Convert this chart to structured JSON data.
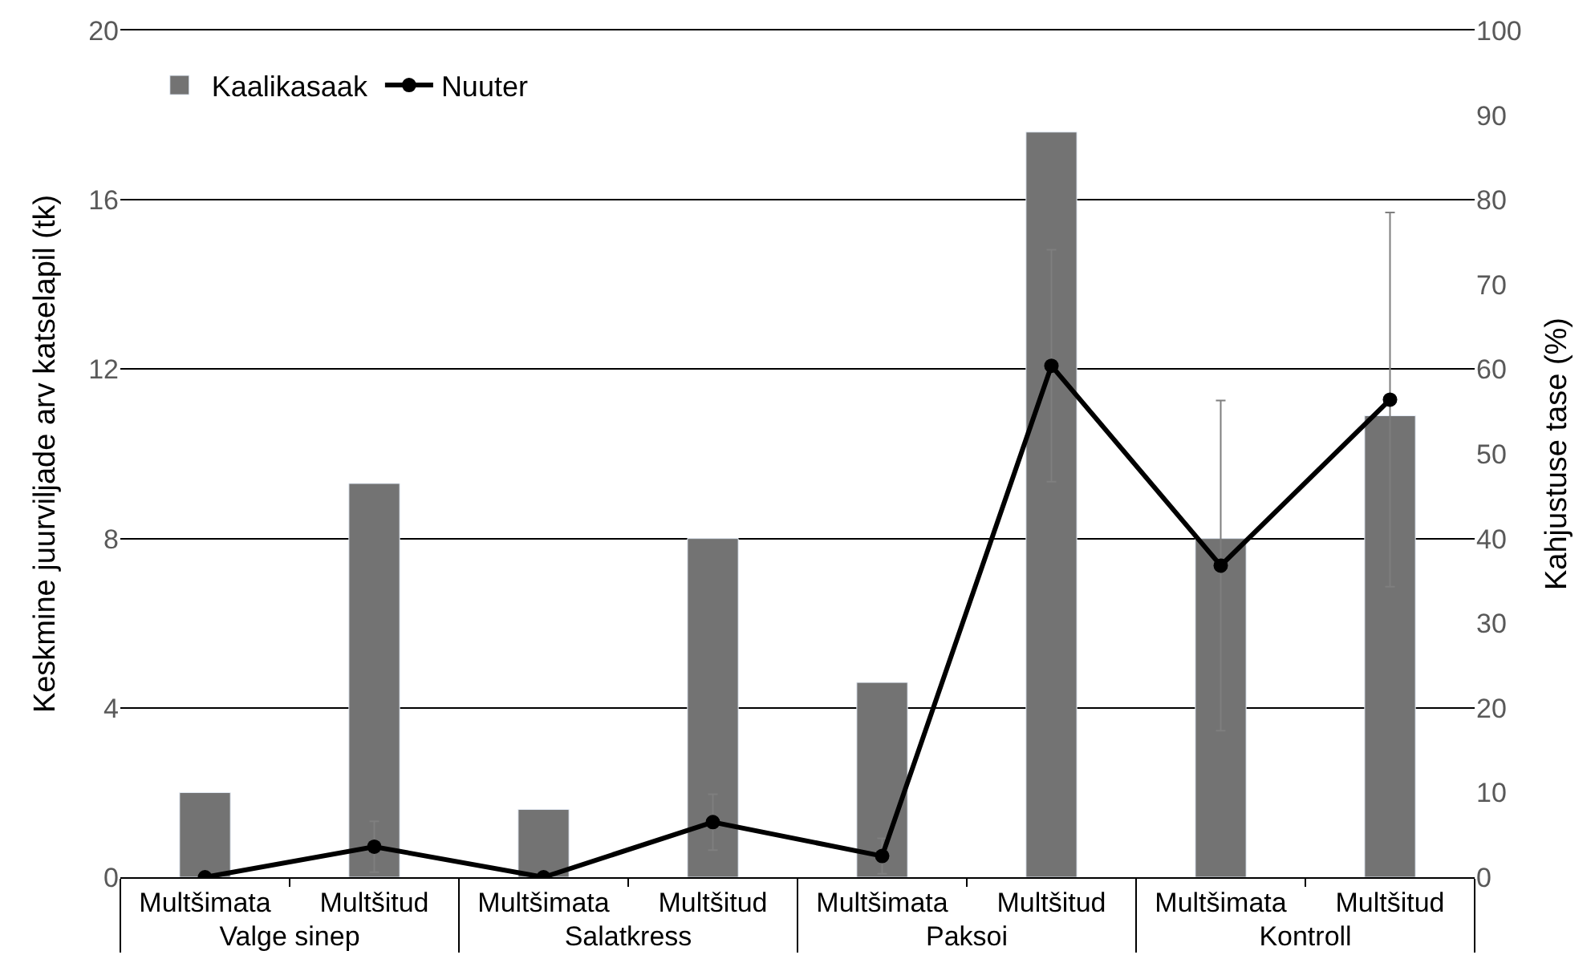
{
  "chart_data": {
    "type": "bar",
    "categories": [
      [
        "Valge sinep",
        "Multšimata"
      ],
      [
        null,
        "Multšitud"
      ],
      [
        "Salatkress",
        "Multšimata"
      ],
      [
        null,
        "Multšitud"
      ],
      [
        "Paksoi",
        "Multšimata"
      ],
      [
        null,
        "Multšitud"
      ],
      [
        "Kontroll",
        "Multšimata"
      ],
      [
        null,
        "Multšitud"
      ]
    ],
    "ylabel": "Keskmine juurviljade arv katselapil (tk)",
    "y2label": "Kahjustuse tase (%)",
    "series": [
      {
        "name": "Kaalikasaak",
        "color": "#737373",
        "values": [
          2.0,
          9.3,
          1.6,
          8.0,
          4.6,
          17.6,
          8.0,
          10.9
        ]
      },
      {
        "name": "Nuuter",
        "type": "line",
        "axis": "y2",
        "color": "#000000",
        "marker": "circle",
        "line_style": "solid",
        "values": [
          0,
          3.6,
          0,
          6.5,
          2.5,
          60.4,
          36.8,
          56.4
        ],
        "errors": [
          null,
          3.0,
          null,
          3.3,
          2.1,
          13.7,
          19.5,
          22.1
        ]
      }
    ],
    "ylim": [
      0,
      20
    ],
    "yticks": [
      0,
      4,
      8,
      12,
      16,
      20
    ],
    "y2lim": [
      0,
      100
    ],
    "y2ticks": [
      0,
      10,
      20,
      30,
      40,
      50,
      60,
      70,
      80,
      90,
      100
    ],
    "grid": "y",
    "legend": "top left"
  }
}
